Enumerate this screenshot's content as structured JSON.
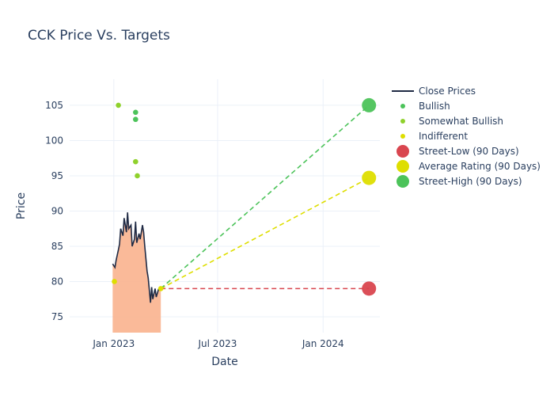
{
  "chart_data": {
    "type": "line",
    "title": "CCK Price Vs. Targets",
    "xlabel": "Date",
    "ylabel": "Price",
    "xlim": [
      "2022-10-16",
      "2024-04-09"
    ],
    "ylim": [
      72.75,
      108.7
    ],
    "x_ticks": [
      {
        "date": "2023-01-01",
        "label": "Jan 2023"
      },
      {
        "date": "2023-07-01",
        "label": "Jul 2023"
      },
      {
        "date": "2024-01-01",
        "label": "Jan 2024"
      }
    ],
    "y_ticks": [
      75,
      80,
      85,
      90,
      95,
      100,
      105
    ],
    "grid": true,
    "legend_position": "right",
    "colors": {
      "close": "#1f2a44",
      "fill": "#f9b28e",
      "bullish": "#4cc35a",
      "somewhat_bullish": "#8fd12c",
      "indifferent": "#dede00",
      "low": "#d9464f",
      "avg": "#dede00",
      "high": "#4cc35a"
    },
    "series": [
      {
        "name": "Close Prices",
        "type": "line",
        "x": [
          "2022-12-30",
          "2023-01-03",
          "2023-01-05",
          "2023-01-09",
          "2023-01-11",
          "2023-01-13",
          "2023-01-17",
          "2023-01-19",
          "2023-01-23",
          "2023-01-25",
          "2023-01-27",
          "2023-01-31",
          "2023-02-02",
          "2023-02-06",
          "2023-02-08",
          "2023-02-10",
          "2023-02-14",
          "2023-02-16",
          "2023-02-20",
          "2023-02-22",
          "2023-02-24",
          "2023-02-28",
          "2023-03-02",
          "2023-03-06",
          "2023-03-08",
          "2023-03-10",
          "2023-03-14",
          "2023-03-16",
          "2023-03-20",
          "2023-03-24"
        ],
        "y": [
          82.5,
          82,
          83,
          84.5,
          85.3,
          87.5,
          86.5,
          89,
          87,
          89.8,
          87.5,
          88,
          85,
          86,
          88.5,
          85.5,
          86.8,
          86,
          88,
          87,
          85,
          81.5,
          80.5,
          77,
          79.2,
          77.5,
          79,
          77.8,
          78.9,
          79
        ]
      },
      {
        "name": "Bullish",
        "type": "scatter",
        "x": [
          "2023-02-08",
          "2023-02-08"
        ],
        "y": [
          104,
          103
        ]
      },
      {
        "name": "Somewhat Bullish",
        "type": "scatter",
        "x": [
          "2023-01-09",
          "2023-02-08",
          "2023-02-11"
        ],
        "y": [
          105,
          97,
          95
        ]
      },
      {
        "name": "Indifferent",
        "type": "scatter",
        "x": [
          "2023-01-02",
          "2023-03-24"
        ],
        "y": [
          80,
          79
        ]
      },
      {
        "name": "Street-Low (90 Days)",
        "type": "target",
        "from": [
          "2023-03-24",
          79
        ],
        "x": "2024-03-21",
        "y": 79
      },
      {
        "name": "Average Rating (90 Days)",
        "type": "target",
        "from": [
          "2023-03-24",
          79
        ],
        "x": "2024-03-21",
        "y": 94.7
      },
      {
        "name": "Street-High (90 Days)",
        "type": "target",
        "from": [
          "2023-03-24",
          79
        ],
        "x": "2024-03-21",
        "y": 105
      }
    ]
  }
}
